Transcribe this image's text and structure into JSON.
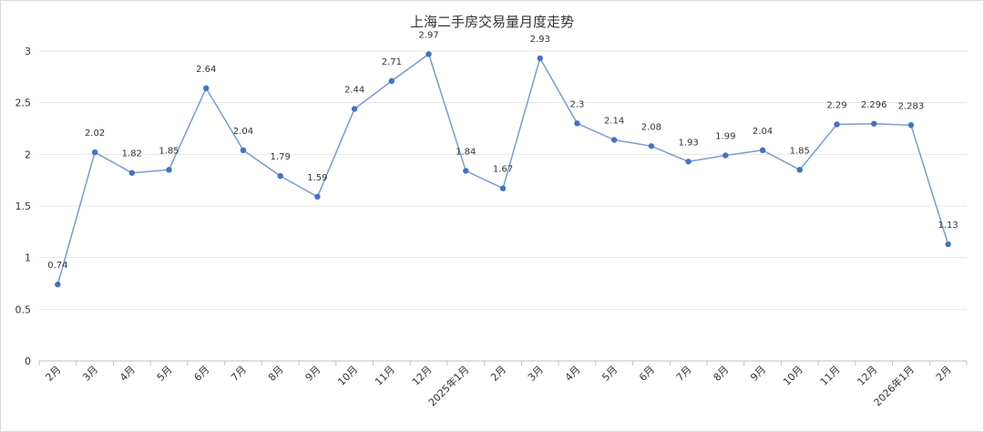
{
  "chart_data": {
    "type": "line",
    "title": "上海二手房交易量月度走势",
    "xlabel": "",
    "ylabel": "",
    "ylim": [
      0,
      3
    ],
    "yticks": [
      "0",
      "0.5",
      "1",
      "1.5",
      "2",
      "2.5",
      "3"
    ],
    "grid": true,
    "legend": "none",
    "categories": [
      "2月",
      "3月",
      "4月",
      "5月",
      "6月",
      "7月",
      "8月",
      "9月",
      "10月",
      "11月",
      "12月",
      "2025年1月",
      "2月",
      "3月",
      "4月",
      "5月",
      "6月",
      "7月",
      "8月",
      "9月",
      "10月",
      "11月",
      "12月",
      "2026年1月",
      "2月"
    ],
    "series": [
      {
        "values": [
          0.74,
          2.02,
          1.82,
          1.85,
          2.64,
          2.04,
          1.79,
          1.59,
          2.44,
          2.71,
          2.97,
          1.84,
          1.67,
          2.93,
          2.3,
          2.14,
          2.08,
          1.93,
          1.99,
          2.04,
          1.85,
          2.29,
          2.296,
          2.283,
          1.13
        ],
        "labels": [
          "0.74",
          "2.02",
          "1.82",
          "1.85",
          "2.64",
          "2.04",
          "1.79",
          "1.59",
          "2.44",
          "2.71",
          "2.97",
          "1.84",
          "1.67",
          "2.93",
          "2.3",
          "2.14",
          "2.08",
          "1.93",
          "1.99",
          "2.04",
          "1.85",
          "2.29",
          "2.296",
          "2.283",
          "1.13"
        ],
        "color": "#7b9bd0",
        "marker_color": "#4472c4"
      }
    ],
    "colors": {
      "grid": "#e6e6e6",
      "axis": "#bfbfbf"
    }
  }
}
